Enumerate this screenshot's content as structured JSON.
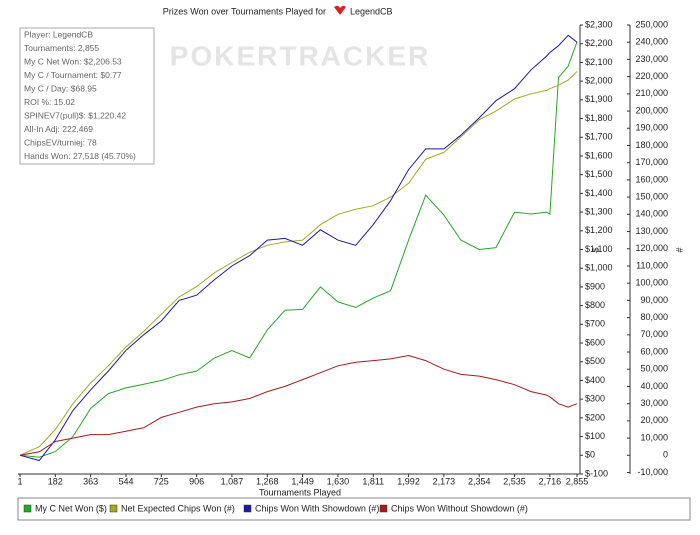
{
  "chart_data": {
    "type": "line",
    "title": "Prizes Won over Tournaments Played for",
    "player": "LegendCB",
    "watermark": "POKERTRACKER",
    "stats": [
      "Player: LegendCB",
      "Tournaments: 2,855",
      "My C Net Won: $2,206.53",
      "My C / Tournament: $0.77",
      "My C / Day: $68.95",
      "ROI %: 15.02",
      "SPINEV7(pull)$: $1,220.42",
      "All-In Adj: 222,469",
      "ChipsEV/turniej: 78",
      "Hands Won: 27,518 (45.70%)"
    ],
    "x_label": "Tournaments Played",
    "y_label": "$",
    "y2_label": "#",
    "x": [
      1,
      100,
      182,
      272,
      363,
      454,
      544,
      635,
      725,
      816,
      906,
      997,
      1087,
      1178,
      1268,
      1359,
      1449,
      1540,
      1630,
      1721,
      1811,
      1900,
      1992,
      2080,
      2173,
      2260,
      2354,
      2440,
      2535,
      2620,
      2700,
      2716,
      2760,
      2810,
      2855
    ],
    "xlim": [
      1,
      2855
    ],
    "xticks": [
      1,
      182,
      363,
      544,
      725,
      906,
      {
        "value": 1087,
        "label": "1,087"
      },
      {
        "value": 1268,
        "label": "1,268"
      },
      {
        "value": 1449,
        "label": "1,449"
      },
      {
        "value": 1630,
        "label": "1,630"
      },
      {
        "value": 1811,
        "label": "1,811"
      },
      {
        "value": 1992,
        "label": "1,992"
      },
      {
        "value": 2173,
        "label": "2,173"
      },
      {
        "value": 2354,
        "label": "2,354"
      },
      {
        "value": 2535,
        "label": "2,535"
      },
      {
        "value": 2716,
        "label": "2,716"
      },
      {
        "value": 2855,
        "label": "2,855"
      }
    ],
    "ylim": [
      -100,
      2300
    ],
    "yticks": [
      {
        "value": -100,
        "label": "$-100"
      },
      {
        "value": 0,
        "label": "$0"
      },
      {
        "value": 100,
        "label": "$100"
      },
      {
        "value": 200,
        "label": "$200"
      },
      {
        "value": 300,
        "label": "$300"
      },
      {
        "value": 400,
        "label": "$400"
      },
      {
        "value": 500,
        "label": "$500"
      },
      {
        "value": 600,
        "label": "$600"
      },
      {
        "value": 700,
        "label": "$700"
      },
      {
        "value": 800,
        "label": "$800"
      },
      {
        "value": 900,
        "label": "$900"
      },
      {
        "value": 1000,
        "label": "$1,000"
      },
      {
        "value": 1100,
        "label": "$1,100"
      },
      {
        "value": 1200,
        "label": "$1,200"
      },
      {
        "value": 1300,
        "label": "$1,300"
      },
      {
        "value": 1400,
        "label": "$1,400"
      },
      {
        "value": 1500,
        "label": "$1,500"
      },
      {
        "value": 1600,
        "label": "$1,600"
      },
      {
        "value": 1700,
        "label": "$1,700"
      },
      {
        "value": 1800,
        "label": "$1,800"
      },
      {
        "value": 1900,
        "label": "$1,900"
      },
      {
        "value": 2000,
        "label": "$2,000"
      },
      {
        "value": 2100,
        "label": "$2,100"
      },
      {
        "value": 2200,
        "label": "$2,200"
      },
      {
        "value": 2300,
        "label": "$2,300"
      }
    ],
    "y2lim": [
      -10870,
      250000
    ],
    "y2ticks": [
      {
        "value": -10000,
        "label": "-10,000"
      },
      0,
      {
        "value": 10000,
        "label": "10,000"
      },
      {
        "value": 20000,
        "label": "20,000"
      },
      {
        "value": 30000,
        "label": "30,000"
      },
      {
        "value": 40000,
        "label": "40,000"
      },
      {
        "value": 50000,
        "label": "50,000"
      },
      {
        "value": 60000,
        "label": "60,000"
      },
      {
        "value": 70000,
        "label": "70,000"
      },
      {
        "value": 80000,
        "label": "80,000"
      },
      {
        "value": 90000,
        "label": "90,000"
      },
      {
        "value": 100000,
        "label": "100,000"
      },
      {
        "value": 110000,
        "label": "110,000"
      },
      {
        "value": 120000,
        "label": "120,000"
      },
      {
        "value": 130000,
        "label": "130,000"
      },
      {
        "value": 140000,
        "label": "140,000"
      },
      {
        "value": 150000,
        "label": "150,000"
      },
      {
        "value": 160000,
        "label": "160,000"
      },
      {
        "value": 170000,
        "label": "170,000"
      },
      {
        "value": 180000,
        "label": "180,000"
      },
      {
        "value": 190000,
        "label": "190,000"
      },
      {
        "value": 200000,
        "label": "200,000"
      },
      {
        "value": 210000,
        "label": "210,000"
      },
      {
        "value": 220000,
        "label": "220,000"
      },
      {
        "value": 230000,
        "label": "230,000"
      },
      {
        "value": 240000,
        "label": "240,000"
      },
      {
        "value": 250000,
        "label": "250,000"
      }
    ],
    "series": [
      {
        "name": "My C Net Won ($)",
        "color": "#22aa22",
        "axis": "y",
        "values": [
          0,
          -10,
          20,
          100,
          250,
          330,
          360,
          380,
          400,
          430,
          450,
          520,
          560,
          520,
          670,
          775,
          780,
          900,
          820,
          790,
          840,
          880,
          1150,
          1390,
          1284,
          1150,
          1100,
          1110,
          1300,
          1290,
          1300,
          1290,
          2020,
          2080,
          2210
        ]
      },
      {
        "name": "Net Expected Chips Won (#)",
        "color": "#a8a820",
        "axis": "y2",
        "values": [
          0,
          5000,
          15000,
          30000,
          42000,
          52000,
          63000,
          72000,
          82000,
          92000,
          98000,
          106000,
          112000,
          118000,
          122000,
          124000,
          125000,
          134000,
          140000,
          143000,
          145000,
          150000,
          158000,
          172000,
          176000,
          185000,
          195000,
          200000,
          207000,
          210000,
          212000,
          213000,
          215000,
          218000,
          223000
        ]
      },
      {
        "name": "Chips Won With Showdown (#)",
        "color": "#1a1aaa",
        "axis": "y2",
        "values": [
          0,
          -3000,
          9000,
          26000,
          38000,
          49000,
          61000,
          70000,
          78000,
          90000,
          93000,
          102000,
          110000,
          116000,
          125000,
          126000,
          122000,
          131000,
          125000,
          122000,
          134000,
          148000,
          166000,
          178000,
          178000,
          186000,
          196000,
          206000,
          213000,
          224000,
          232000,
          234000,
          238000,
          244000,
          240000
        ]
      },
      {
        "name": "Chips Won Without Showdown (#)",
        "color": "#aa1a1a",
        "axis": "y2",
        "values": [
          0,
          2000,
          8000,
          10000,
          12000,
          12000,
          14000,
          16000,
          22000,
          25000,
          28000,
          30000,
          31000,
          33000,
          37000,
          40000,
          44000,
          48000,
          52000,
          54000,
          55000,
          56000,
          58000,
          55000,
          50000,
          47000,
          46000,
          44000,
          41000,
          37000,
          35000,
          34000,
          30000,
          28000,
          30000
        ]
      }
    ]
  }
}
